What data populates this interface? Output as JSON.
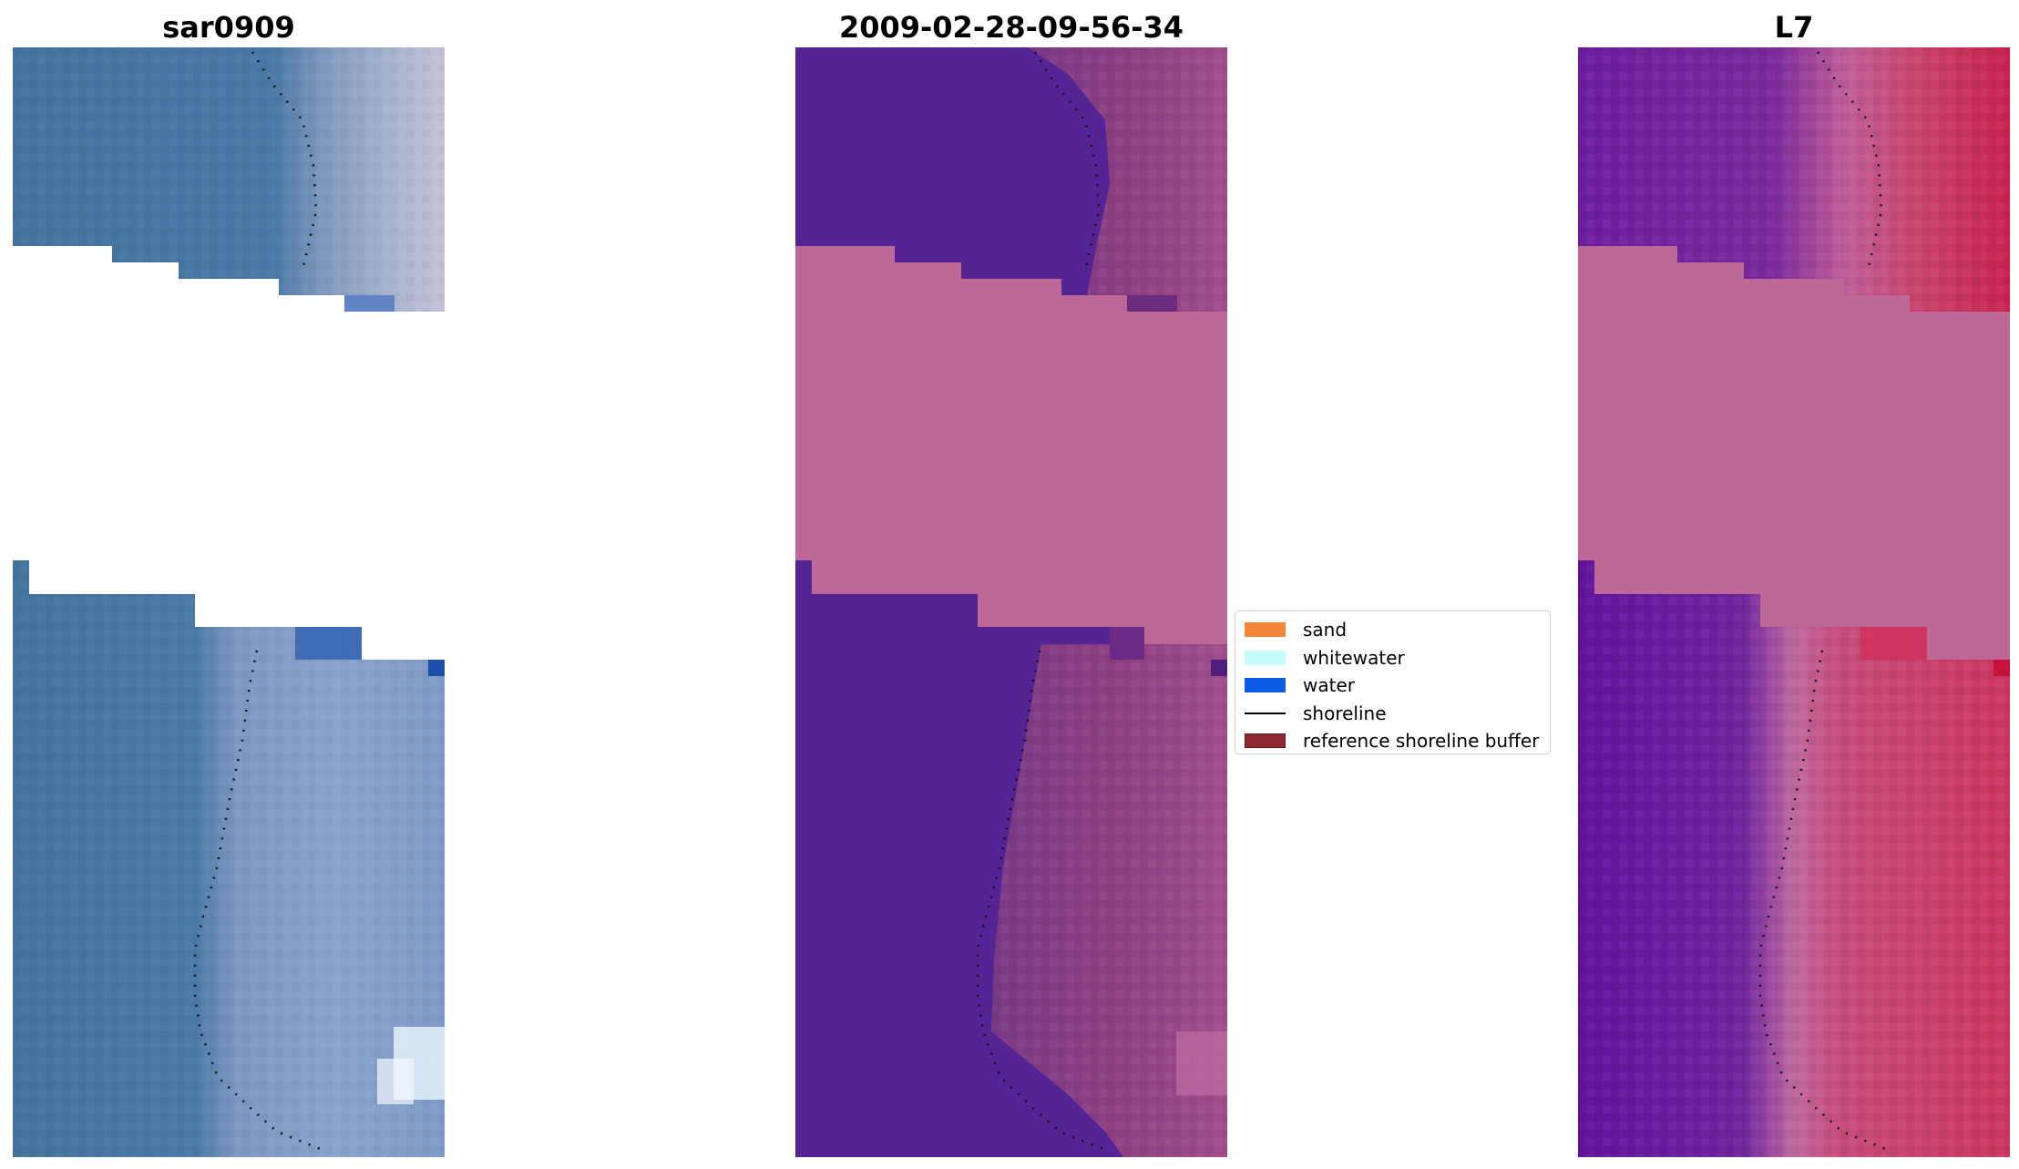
{
  "panels": [
    {
      "title": "sar0909"
    },
    {
      "title": "2009-02-28-09-56-34"
    },
    {
      "title": "L7"
    }
  ],
  "legend": {
    "items": [
      {
        "label": "sand",
        "kind": "patch",
        "color": "#f28739"
      },
      {
        "label": "whitewater",
        "kind": "patch",
        "color": "#c7fdfd"
      },
      {
        "label": "water",
        "kind": "patch",
        "color": "#0d5ce6"
      },
      {
        "label": "shoreline",
        "kind": "line",
        "color": "#000000"
      },
      {
        "label": "reference shoreline buffer",
        "kind": "patch",
        "color": "#8c2a30"
      }
    ]
  },
  "colors": {
    "nodata_fill": "#bd6896",
    "water_class_overlay": "#542394",
    "rgb_water": "#4674a0",
    "rgb_beach": "#8fa4c8"
  }
}
